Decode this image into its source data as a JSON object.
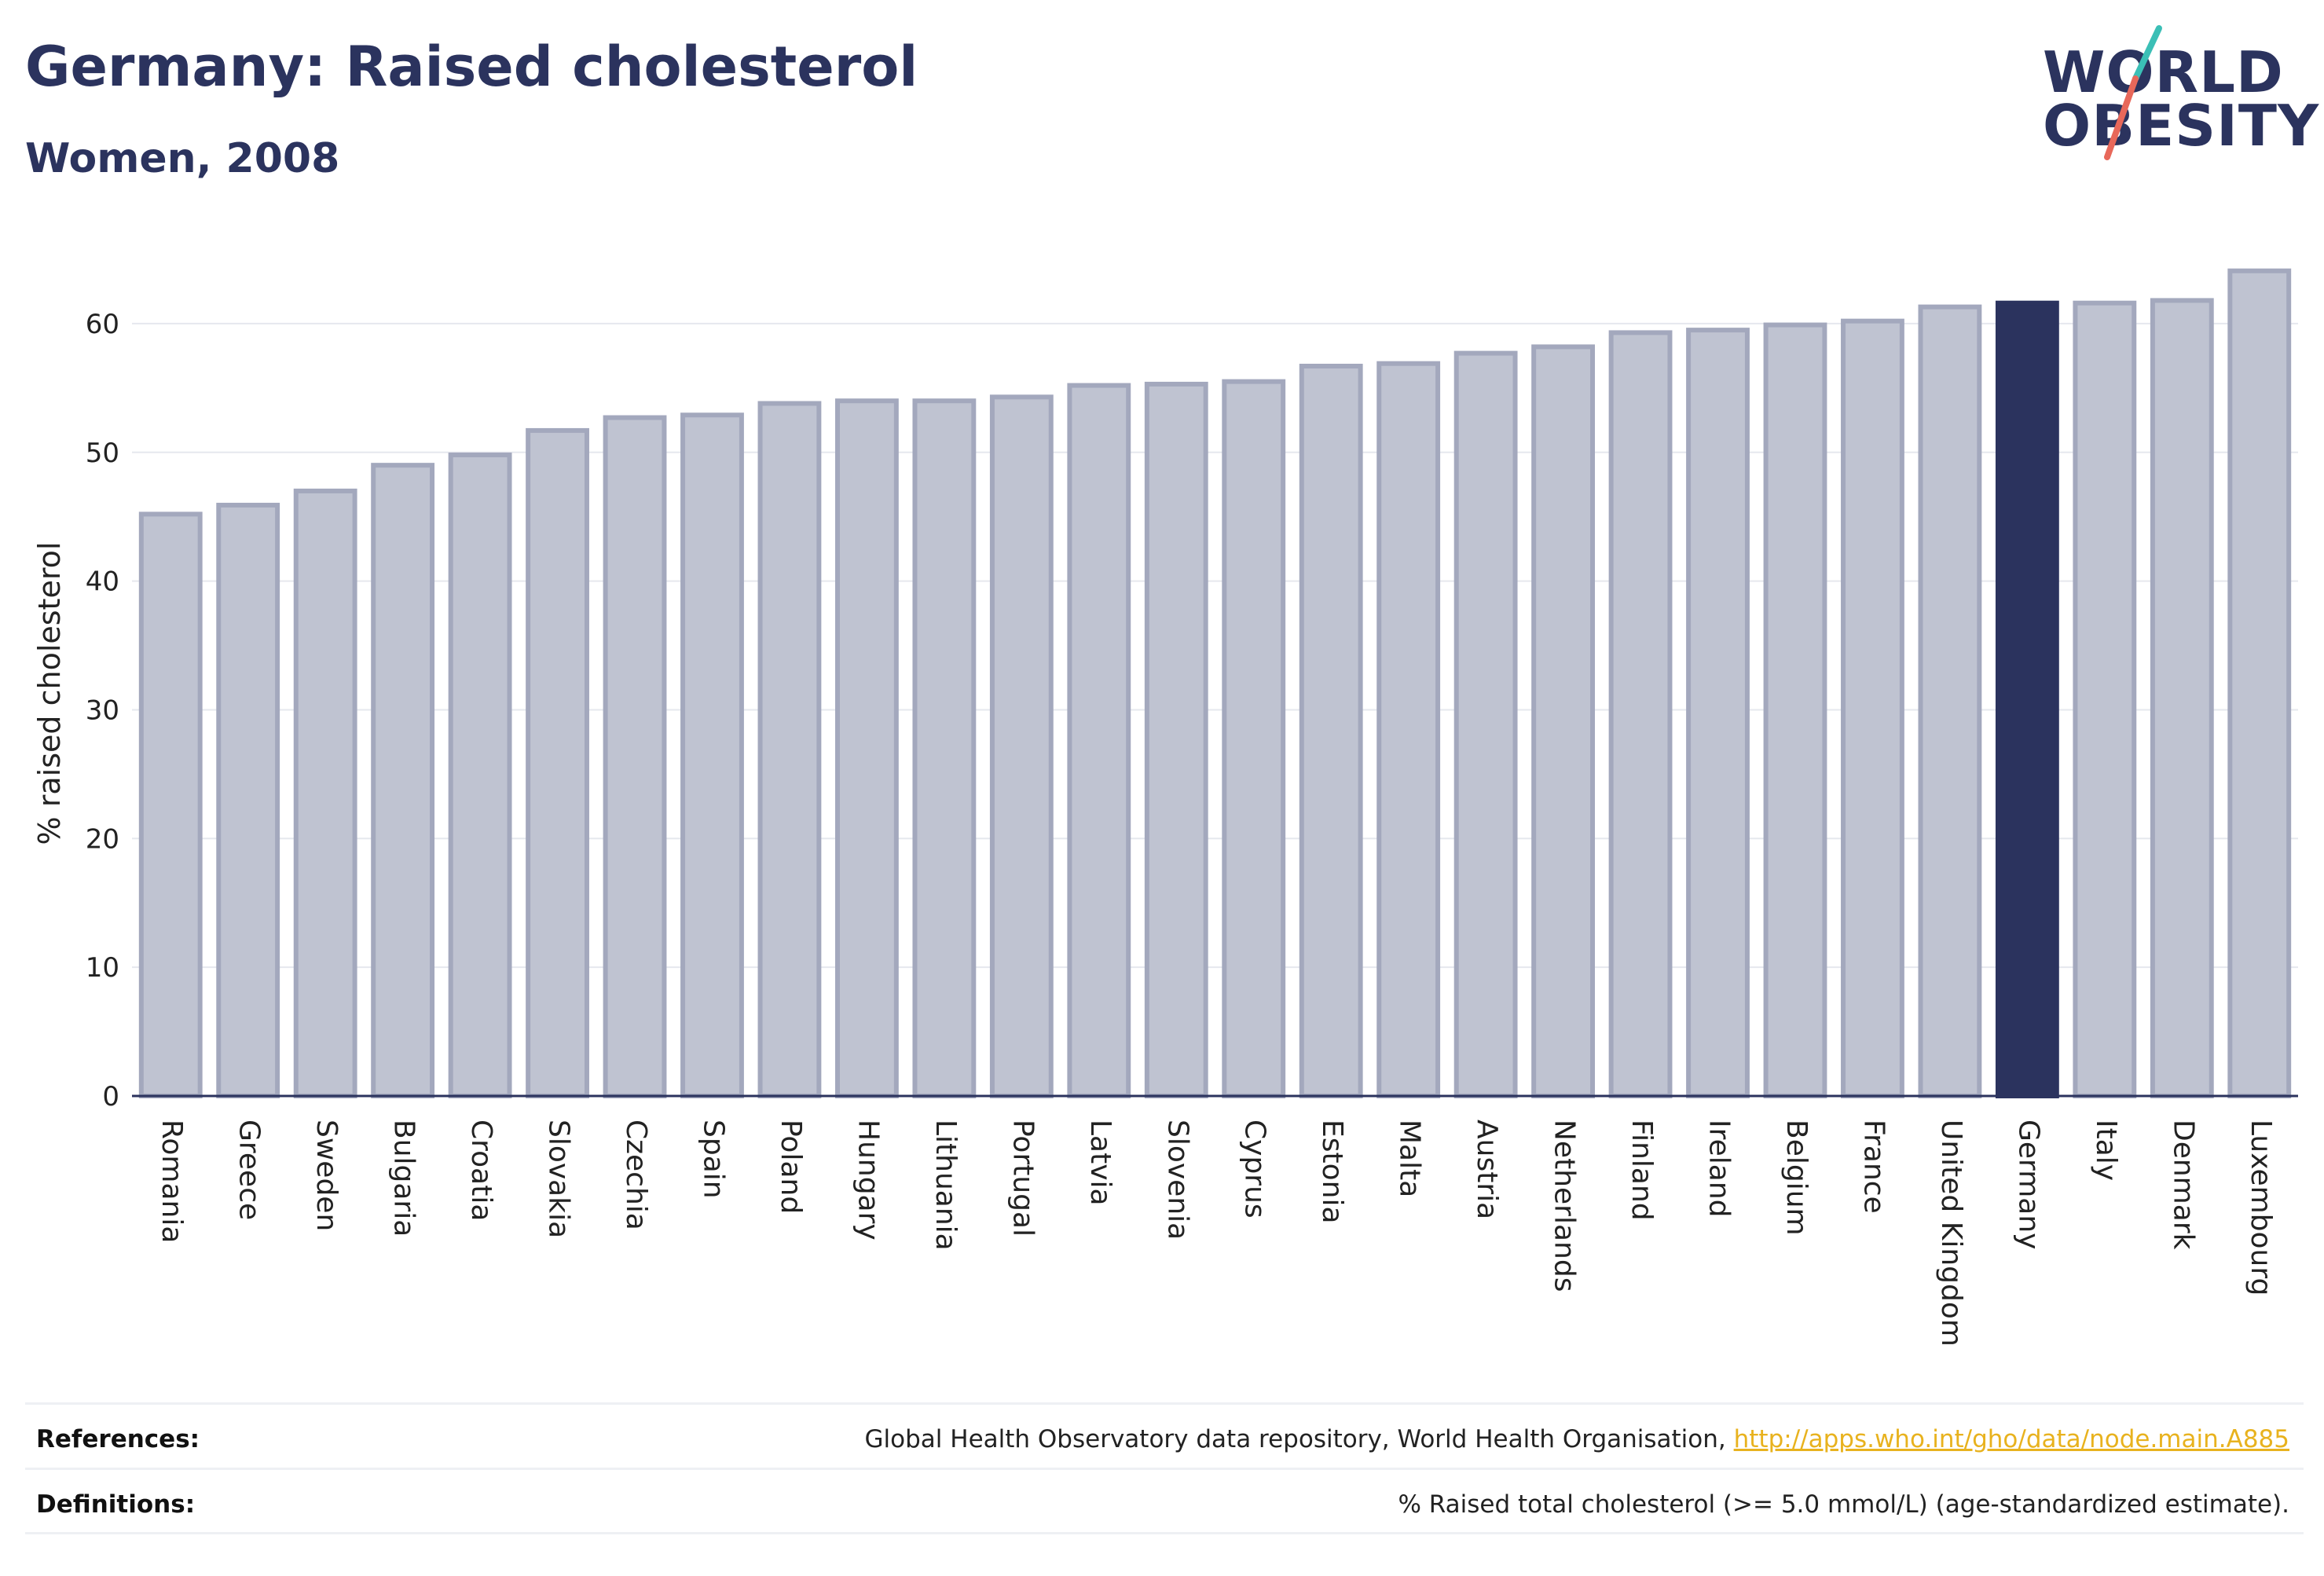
{
  "header": {
    "title": "Germany: Raised cholesterol",
    "subtitle": "Women, 2008"
  },
  "logo": {
    "line1": "WORLD",
    "line2": "OBESITY",
    "accent_colors": [
      "#3bbfb6",
      "#e8685a"
    ]
  },
  "colors": {
    "bar": "#bfc3d1",
    "bar_border": "#a3a8bd",
    "highlight": "#2b335e",
    "grid": "#e6e8ee",
    "axis": "#2b335e",
    "link": "#e8b21e"
  },
  "chart_data": {
    "type": "bar",
    "ylabel": "% raised cholesterol",
    "xlabel": "",
    "ylim": [
      0,
      65
    ],
    "yticks": [
      0,
      10,
      20,
      30,
      40,
      50,
      60
    ],
    "grid": true,
    "highlight": "Germany",
    "categories": [
      "Romania",
      "Greece",
      "Sweden",
      "Bulgaria",
      "Croatia",
      "Slovakia",
      "Czechia",
      "Spain",
      "Poland",
      "Hungary",
      "Lithuania",
      "Portugal",
      "Latvia",
      "Slovenia",
      "Cyprus",
      "Estonia",
      "Malta",
      "Austria",
      "Netherlands",
      "Finland",
      "Ireland",
      "Belgium",
      "France",
      "United Kingdom",
      "Germany",
      "Italy",
      "Denmark",
      "Luxembourg"
    ],
    "values": [
      45.2,
      45.9,
      47.0,
      49.0,
      49.8,
      51.7,
      52.7,
      52.9,
      53.8,
      54.0,
      54.0,
      54.3,
      55.2,
      55.3,
      55.5,
      56.7,
      56.9,
      57.7,
      58.2,
      59.3,
      59.5,
      59.9,
      60.2,
      61.3,
      61.6,
      61.6,
      61.8,
      64.1
    ]
  },
  "footer": {
    "references_label": "References:",
    "references_text": "Global Health Observatory data repository, World Health Organisation, ",
    "references_link": "http://apps.who.int/gho/data/node.main.A885",
    "definitions_label": "Definitions:",
    "definitions_text": "% Raised total cholesterol (>= 5.0 mmol/L) (age-standardized estimate)."
  }
}
